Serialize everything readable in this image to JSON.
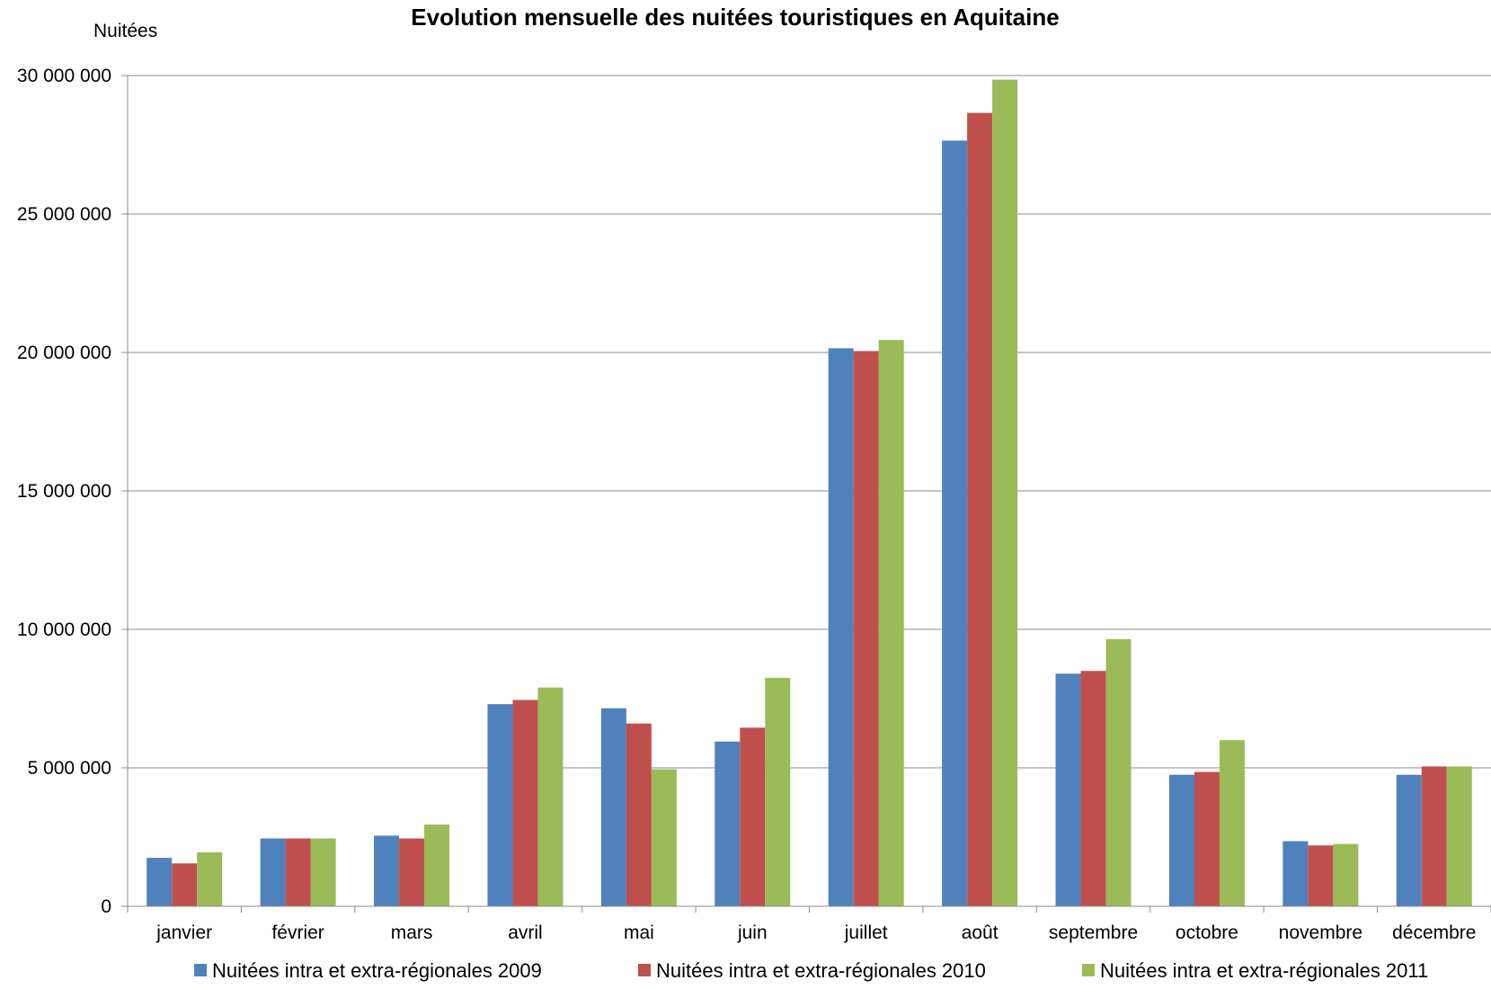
{
  "chart_data": {
    "type": "bar",
    "title": "Evolution mensuelle des nuitées touristiques en Aquitaine",
    "ylabel": "Nuitées",
    "xlabel": "",
    "ylim": [
      0,
      30000000
    ],
    "yticks": [
      0,
      5000000,
      10000000,
      15000000,
      20000000,
      25000000,
      30000000
    ],
    "ytick_labels": [
      "0",
      "5 000 000",
      "10 000 000",
      "15 000 000",
      "20 000 000",
      "25 000 000",
      "30 000 000"
    ],
    "grid": true,
    "legend_position": "bottom",
    "categories": [
      "janvier",
      "février",
      "mars",
      "avril",
      "mai",
      "juin",
      "juillet",
      "août",
      "septembre",
      "octobre",
      "novembre",
      "décembre"
    ],
    "series": [
      {
        "name": "Nuitées intra et extra-régionales 2009",
        "color": "#4F81BD",
        "values": [
          1750000,
          2450000,
          2550000,
          7300000,
          7150000,
          5950000,
          20150000,
          27650000,
          8400000,
          4750000,
          2350000,
          4750000
        ]
      },
      {
        "name": "Nuitées intra et extra-régionales 2010",
        "color": "#C0504D",
        "values": [
          1550000,
          2450000,
          2450000,
          7450000,
          6600000,
          6450000,
          20050000,
          28650000,
          8500000,
          4850000,
          2200000,
          5050000
        ]
      },
      {
        "name": "Nuitées intra et extra-régionales 2011",
        "color": "#9BBB59",
        "values": [
          1950000,
          2450000,
          2950000,
          7900000,
          4950000,
          8250000,
          20450000,
          29850000,
          9650000,
          6000000,
          2250000,
          5050000
        ]
      }
    ]
  }
}
